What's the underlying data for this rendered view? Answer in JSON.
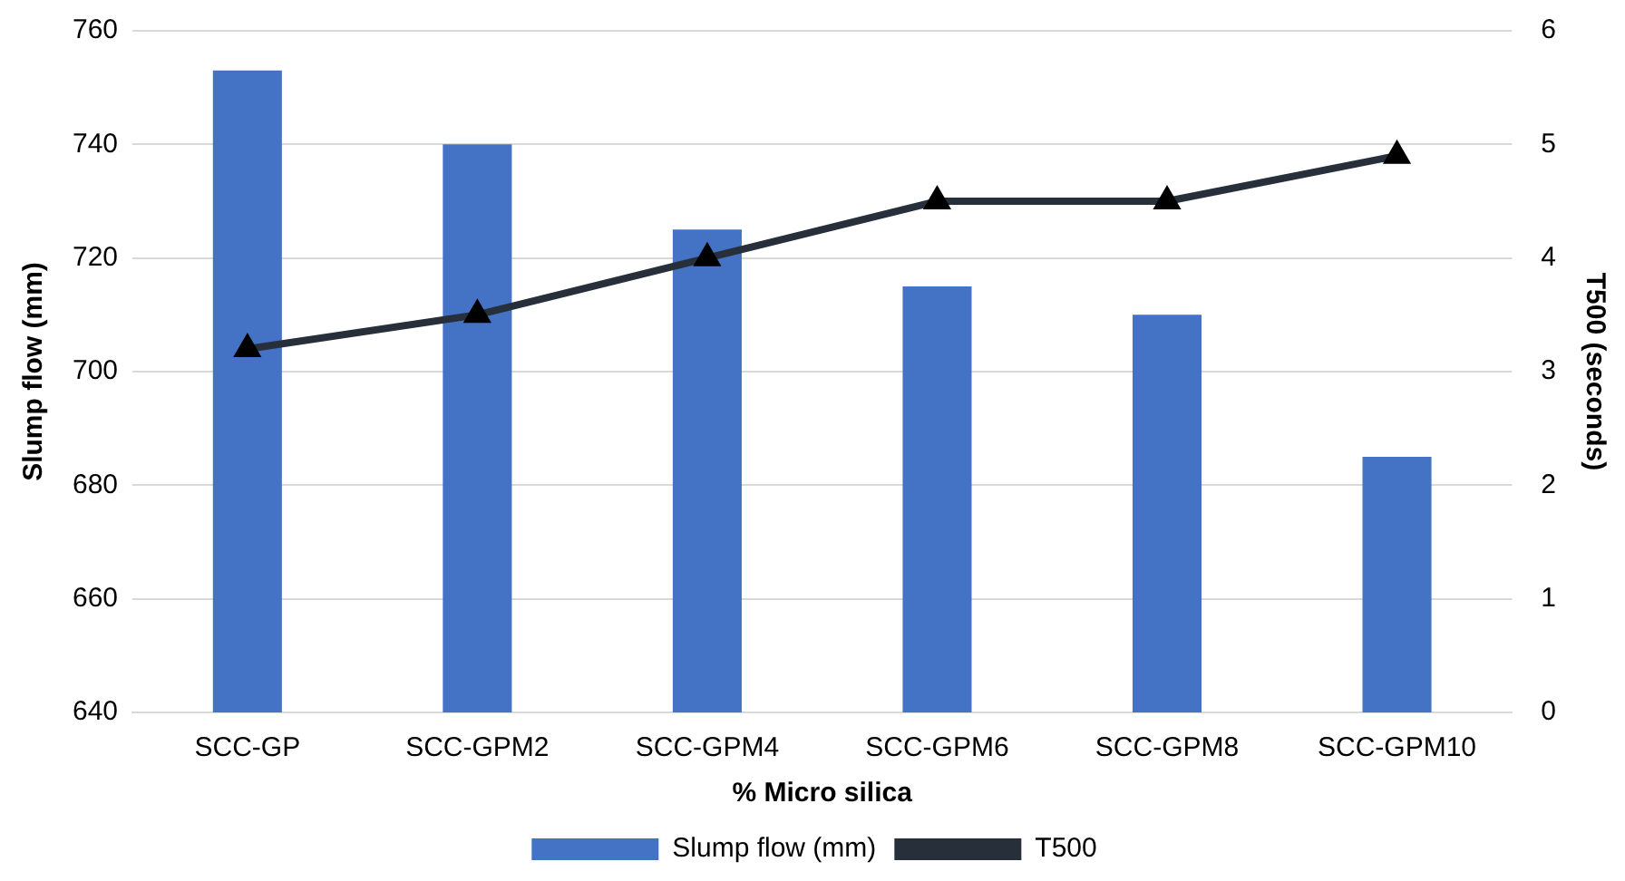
{
  "chart_data": {
    "type": "bar",
    "xlabel": "% Micro silica",
    "ylabel": "Slump flow (mm)",
    "y2label": "T500 (seconds)",
    "categories": [
      "SCC-GP",
      "SCC-GPM2",
      "SCC-GPM4",
      "SCC-GPM6",
      "SCC-GPM8",
      "SCC-GPM10"
    ],
    "series": [
      {
        "name": "Slump flow (mm)",
        "color": "#4472c4",
        "values": [
          753,
          740,
          725,
          715,
          710,
          685
        ]
      },
      {
        "name": "T500",
        "type": "line",
        "axis": "y2",
        "color": "#262f3a",
        "marker": "triangle",
        "values": [
          3.2,
          3.5,
          4.0,
          4.5,
          4.5,
          4.9
        ]
      }
    ],
    "ylim": [
      640,
      760
    ],
    "yticks": [
      640,
      660,
      680,
      700,
      720,
      740,
      760
    ],
    "y2lim": [
      0,
      6
    ],
    "y2ticks": [
      0,
      1,
      2,
      3,
      4,
      5,
      6
    ],
    "grid": "y",
    "legend": "bottom"
  }
}
